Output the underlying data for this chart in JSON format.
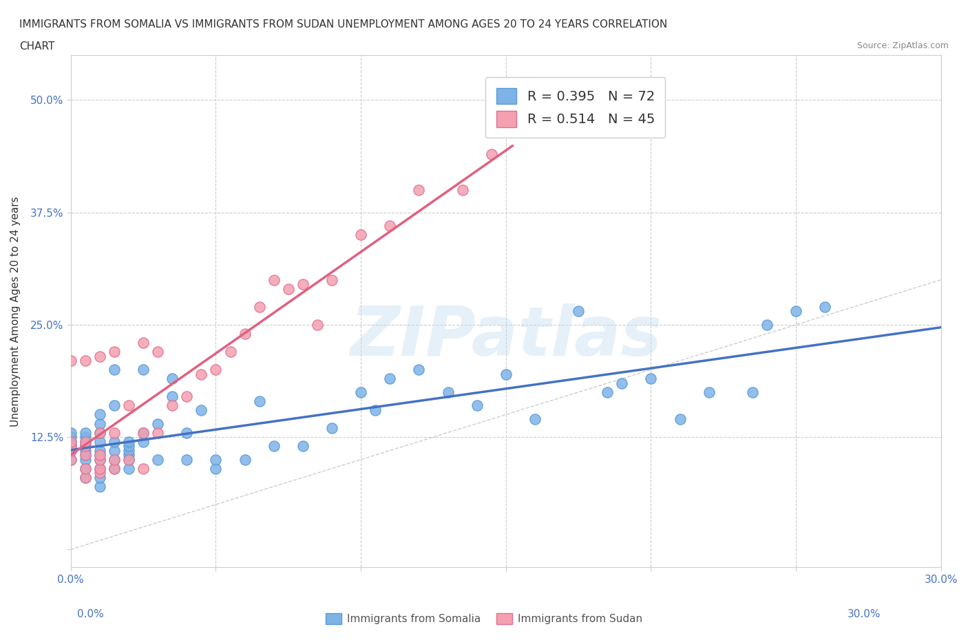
{
  "title_line1": "IMMIGRANTS FROM SOMALIA VS IMMIGRANTS FROM SUDAN UNEMPLOYMENT AMONG AGES 20 TO 24 YEARS CORRELATION",
  "title_line2": "CHART",
  "source_text": "Source: ZipAtlas.com",
  "xlabel": "",
  "ylabel": "Unemployment Among Ages 20 to 24 years",
  "xlim": [
    0.0,
    0.3
  ],
  "ylim": [
    -0.02,
    0.55
  ],
  "xticks": [
    0.0,
    0.05,
    0.1,
    0.15,
    0.2,
    0.25,
    0.3
  ],
  "xtick_labels": [
    "0.0%",
    "",
    "",
    "",
    "",
    "",
    "30.0%"
  ],
  "yticks": [
    0.0,
    0.125,
    0.25,
    0.375,
    0.5
  ],
  "ytick_labels": [
    "",
    "12.5%",
    "25.0%",
    "37.5%",
    "50.0%"
  ],
  "grid_color": "#cccccc",
  "background_color": "#ffffff",
  "somalia_color": "#7eb3e8",
  "sudan_color": "#f4a0b0",
  "somalia_edge": "#5a9ad4",
  "sudan_edge": "#e07090",
  "regression_somalia_color": "#4472c4",
  "regression_sudan_color": "#e06080",
  "diagonal_color": "#cccccc",
  "R_somalia": 0.395,
  "N_somalia": 72,
  "R_sudan": 0.514,
  "N_sudan": 45,
  "watermark": "ZIPatlas",
  "legend_somalia": "Immigrants from Somalia",
  "legend_sudan": "Immigrants from Sudan",
  "somalia_x": [
    0.0,
    0.0,
    0.0,
    0.0,
    0.0,
    0.0,
    0.005,
    0.005,
    0.005,
    0.005,
    0.005,
    0.005,
    0.005,
    0.005,
    0.005,
    0.01,
    0.01,
    0.01,
    0.01,
    0.01,
    0.01,
    0.01,
    0.01,
    0.01,
    0.01,
    0.015,
    0.015,
    0.015,
    0.015,
    0.015,
    0.015,
    0.02,
    0.02,
    0.02,
    0.02,
    0.02,
    0.02,
    0.025,
    0.025,
    0.025,
    0.03,
    0.03,
    0.035,
    0.035,
    0.04,
    0.04,
    0.045,
    0.05,
    0.05,
    0.06,
    0.065,
    0.07,
    0.08,
    0.09,
    0.1,
    0.105,
    0.11,
    0.12,
    0.13,
    0.14,
    0.15,
    0.16,
    0.175,
    0.185,
    0.19,
    0.2,
    0.21,
    0.22,
    0.235,
    0.24,
    0.25,
    0.26
  ],
  "somalia_y": [
    0.1,
    0.11,
    0.115,
    0.12,
    0.125,
    0.13,
    0.08,
    0.09,
    0.1,
    0.105,
    0.11,
    0.115,
    0.12,
    0.125,
    0.13,
    0.07,
    0.08,
    0.09,
    0.1,
    0.105,
    0.11,
    0.12,
    0.13,
    0.14,
    0.15,
    0.09,
    0.1,
    0.11,
    0.12,
    0.16,
    0.2,
    0.09,
    0.1,
    0.105,
    0.11,
    0.115,
    0.12,
    0.12,
    0.13,
    0.2,
    0.1,
    0.14,
    0.17,
    0.19,
    0.1,
    0.13,
    0.155,
    0.09,
    0.1,
    0.1,
    0.165,
    0.115,
    0.115,
    0.135,
    0.175,
    0.155,
    0.19,
    0.2,
    0.175,
    0.16,
    0.195,
    0.145,
    0.265,
    0.175,
    0.185,
    0.19,
    0.145,
    0.175,
    0.175,
    0.25,
    0.265,
    0.27
  ],
  "sudan_x": [
    0.0,
    0.0,
    0.0,
    0.0,
    0.0,
    0.005,
    0.005,
    0.005,
    0.005,
    0.005,
    0.005,
    0.01,
    0.01,
    0.01,
    0.01,
    0.01,
    0.01,
    0.015,
    0.015,
    0.015,
    0.015,
    0.02,
    0.02,
    0.025,
    0.025,
    0.025,
    0.03,
    0.03,
    0.035,
    0.04,
    0.045,
    0.05,
    0.055,
    0.06,
    0.065,
    0.07,
    0.075,
    0.08,
    0.085,
    0.09,
    0.1,
    0.11,
    0.12,
    0.135,
    0.145
  ],
  "sudan_y": [
    0.1,
    0.11,
    0.115,
    0.12,
    0.21,
    0.08,
    0.09,
    0.105,
    0.115,
    0.12,
    0.21,
    0.085,
    0.09,
    0.1,
    0.105,
    0.13,
    0.215,
    0.09,
    0.1,
    0.13,
    0.22,
    0.1,
    0.16,
    0.09,
    0.13,
    0.23,
    0.13,
    0.22,
    0.16,
    0.17,
    0.195,
    0.2,
    0.22,
    0.24,
    0.27,
    0.3,
    0.29,
    0.295,
    0.25,
    0.3,
    0.35,
    0.36,
    0.4,
    0.4,
    0.44
  ]
}
